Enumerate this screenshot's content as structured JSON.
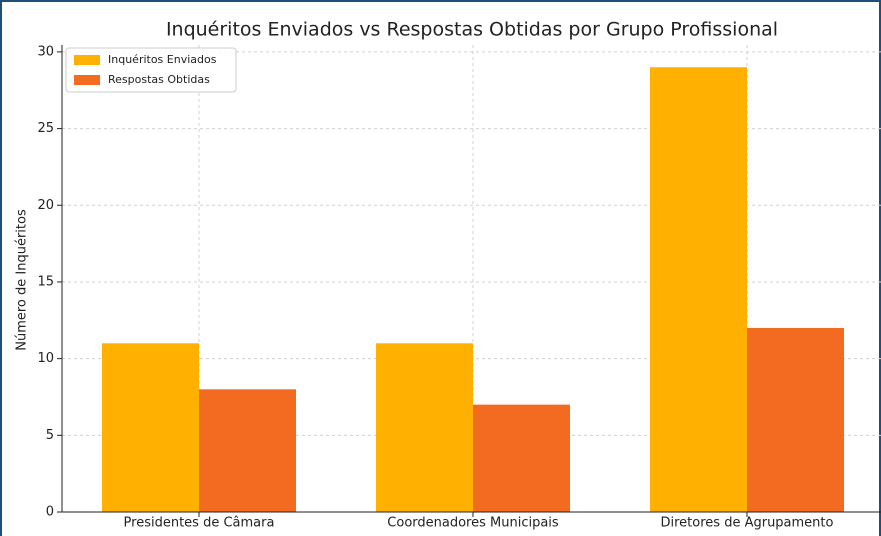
{
  "chart_data": {
    "type": "bar",
    "title": "Inquéritos Enviados vs Respostas Obtidas por Grupo Profissional",
    "y_label": "Número de Inquéritos",
    "categories": [
      "Presidentes de Câmara",
      "Coordenadores Municipais",
      "Diretores de Agrupamento"
    ],
    "series": [
      {
        "name": "Inquéritos Enviados",
        "color": "#ffb000",
        "values": [
          11,
          11,
          29
        ]
      },
      {
        "name": "Respostas Obtidas",
        "color": "#f26b21",
        "values": [
          8,
          7,
          12
        ]
      }
    ],
    "ylim": [
      0,
      30.45
    ],
    "yticks": [
      0,
      5,
      10,
      15,
      20,
      25,
      30
    ],
    "grid": true,
    "legend": "upper left"
  }
}
